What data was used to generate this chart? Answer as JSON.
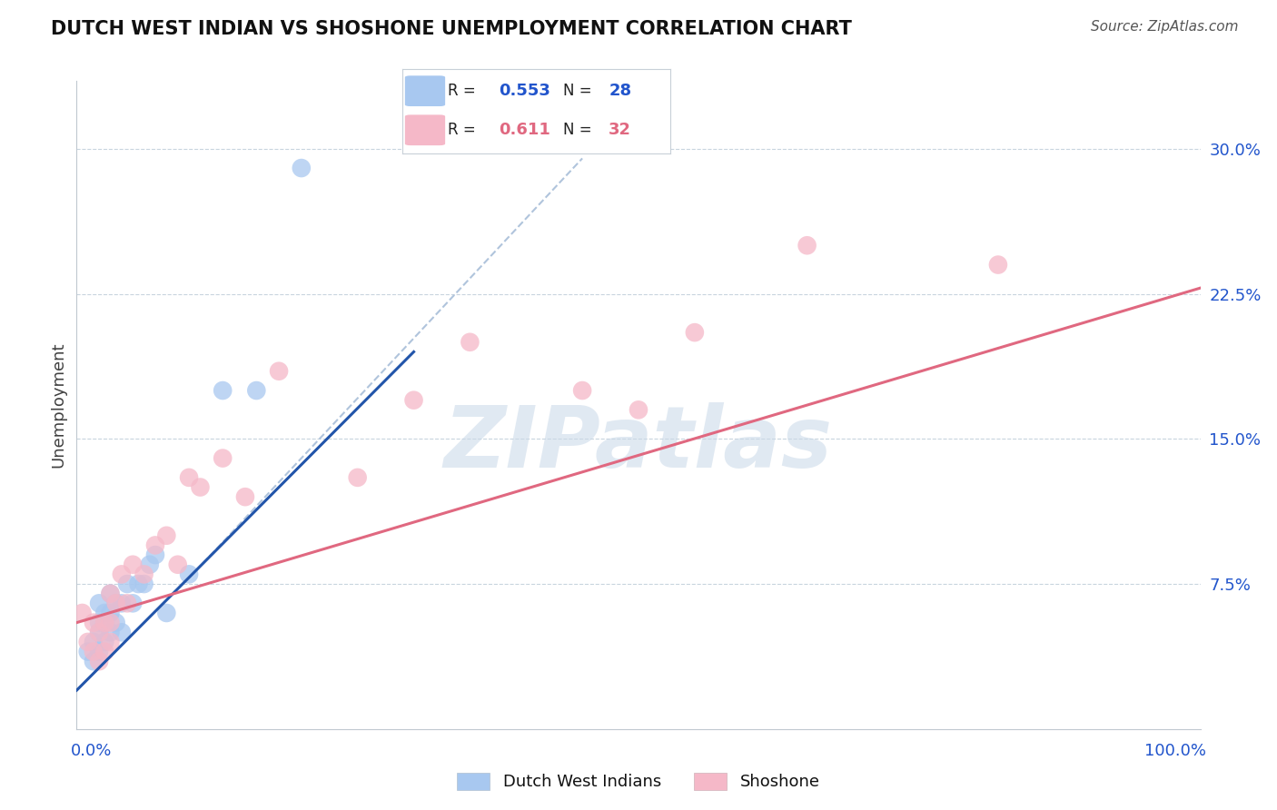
{
  "title": "DUTCH WEST INDIAN VS SHOSHONE UNEMPLOYMENT CORRELATION CHART",
  "source": "Source: ZipAtlas.com",
  "ylabel": "Unemployment",
  "ytick_labels": [
    "7.5%",
    "15.0%",
    "22.5%",
    "30.0%"
  ],
  "ytick_values": [
    0.075,
    0.15,
    0.225,
    0.3
  ],
  "xlim": [
    0.0,
    1.0
  ],
  "ylim": [
    0.0,
    0.335
  ],
  "legend1_R": "0.553",
  "legend1_N": "28",
  "legend2_R": "0.611",
  "legend2_N": "32",
  "blue_color": "#A8C8F0",
  "pink_color": "#F5B8C8",
  "blue_line_color": "#2255AA",
  "pink_line_color": "#E06880",
  "dashed_color": "#B0C4DC",
  "watermark": "ZIPatlas",
  "blue_x": [
    0.01,
    0.015,
    0.015,
    0.02,
    0.02,
    0.02,
    0.02,
    0.025,
    0.025,
    0.025,
    0.03,
    0.03,
    0.03,
    0.035,
    0.035,
    0.04,
    0.04,
    0.045,
    0.05,
    0.055,
    0.06,
    0.065,
    0.07,
    0.08,
    0.1,
    0.13,
    0.16,
    0.2
  ],
  "blue_y": [
    0.04,
    0.035,
    0.045,
    0.04,
    0.05,
    0.055,
    0.065,
    0.045,
    0.055,
    0.06,
    0.05,
    0.06,
    0.07,
    0.055,
    0.065,
    0.05,
    0.065,
    0.075,
    0.065,
    0.075,
    0.075,
    0.085,
    0.09,
    0.06,
    0.08,
    0.175,
    0.175,
    0.29
  ],
  "pink_x": [
    0.005,
    0.01,
    0.015,
    0.015,
    0.02,
    0.02,
    0.025,
    0.025,
    0.03,
    0.03,
    0.03,
    0.035,
    0.04,
    0.045,
    0.05,
    0.06,
    0.07,
    0.08,
    0.09,
    0.1,
    0.11,
    0.13,
    0.15,
    0.18,
    0.25,
    0.3,
    0.35,
    0.45,
    0.5,
    0.55,
    0.65,
    0.82
  ],
  "pink_y": [
    0.06,
    0.045,
    0.04,
    0.055,
    0.035,
    0.05,
    0.04,
    0.055,
    0.045,
    0.055,
    0.07,
    0.065,
    0.08,
    0.065,
    0.085,
    0.08,
    0.095,
    0.1,
    0.085,
    0.13,
    0.125,
    0.14,
    0.12,
    0.185,
    0.13,
    0.17,
    0.2,
    0.175,
    0.165,
    0.205,
    0.25,
    0.24
  ],
  "blue_line_x": [
    0.0,
    0.3
  ],
  "blue_line_y": [
    0.02,
    0.195
  ],
  "pink_line_x": [
    0.0,
    1.0
  ],
  "pink_line_y": [
    0.055,
    0.228
  ],
  "dashed_line_x": [
    0.1,
    0.45
  ],
  "dashed_line_y": [
    0.078,
    0.295
  ]
}
